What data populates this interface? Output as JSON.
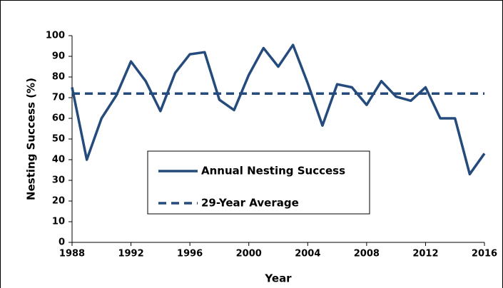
{
  "chart_data": {
    "type": "line",
    "x_label": "Year",
    "y_label": "Nesting Success (%)",
    "x": [
      1988,
      1989,
      1990,
      1991,
      1992,
      1993,
      1994,
      1995,
      1996,
      1997,
      1998,
      1999,
      2000,
      2001,
      2002,
      2003,
      2004,
      2005,
      2006,
      2007,
      2008,
      2009,
      2010,
      2011,
      2012,
      2013,
      2014,
      2015,
      2016
    ],
    "series": [
      {
        "name": "Annual Nesting Success",
        "color": "#244b7c",
        "dash": false,
        "values": [
          75,
          40,
          60,
          71,
          87.5,
          78,
          63.5,
          82,
          91,
          92,
          69,
          64,
          81,
          94,
          85,
          95.5,
          77,
          56.5,
          76.5,
          75,
          66.5,
          78,
          70.5,
          68.5,
          75,
          60,
          60,
          33,
          43
        ]
      },
      {
        "name": "29-Year Average",
        "color": "#244b7c",
        "dash": true,
        "values": [
          72,
          72,
          72,
          72,
          72,
          72,
          72,
          72,
          72,
          72,
          72,
          72,
          72,
          72,
          72,
          72,
          72,
          72,
          72,
          72,
          72,
          72,
          72,
          72,
          72,
          72,
          72,
          72,
          72
        ]
      }
    ],
    "xlim": [
      1988,
      2016
    ],
    "xticks": [
      1988,
      1992,
      1996,
      2000,
      2004,
      2008,
      2012,
      2016
    ],
    "ylim": [
      0,
      100
    ],
    "yticks": [
      0,
      10,
      20,
      30,
      40,
      50,
      60,
      70,
      80,
      90,
      100
    ],
    "grid": false,
    "legend": "center"
  }
}
